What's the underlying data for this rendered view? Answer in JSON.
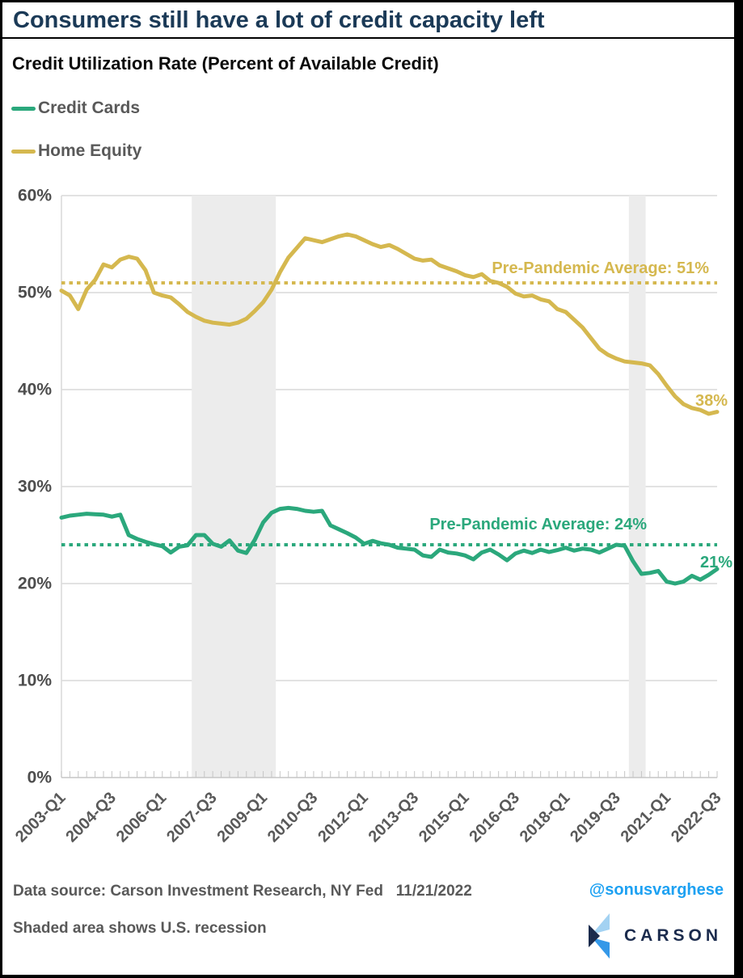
{
  "header": {
    "title": "Consumers still have a lot of credit capacity left",
    "subtitle": "Credit Utilization Rate (Percent of Available Credit)"
  },
  "legend": [
    {
      "label": "Credit Cards",
      "color": "#2ba87c"
    },
    {
      "label": "Home Equity",
      "color": "#d5b84f"
    }
  ],
  "chart_data": {
    "type": "line",
    "x_frequency": "quarterly",
    "x_start": "2003-Q1",
    "x_end": "2022-Q3",
    "x_tick_labels": [
      "2003-Q1",
      "2004-Q3",
      "2006-Q1",
      "2007-Q3",
      "2009-Q1",
      "2010-Q3",
      "2012-Q1",
      "2013-Q3",
      "2015-Q1",
      "2016-Q3",
      "2018-Q1",
      "2019-Q3",
      "2021-Q1",
      "2022-Q3"
    ],
    "ylim": [
      0,
      60
    ],
    "y_tick_labels": [
      "0%",
      "10%",
      "20%",
      "30%",
      "40%",
      "50%",
      "60%"
    ],
    "grid": "horizontal",
    "legend_position": "top-left",
    "recession_bands": [
      {
        "from": "2007-Q1",
        "to": "2009-Q2"
      },
      {
        "from": "2020-Q1",
        "to": "2020-Q2"
      }
    ],
    "series": [
      {
        "name": "Credit Cards",
        "color": "#2ba87c",
        "end_label": "21%",
        "average_line": {
          "value": 24,
          "label": "Pre-Pandemic Average: 24%"
        },
        "values": [
          26.8,
          27.0,
          27.1,
          27.2,
          27.15,
          27.1,
          26.9,
          27.1,
          25.0,
          24.6,
          24.3,
          24.05,
          23.85,
          23.2,
          23.8,
          23.95,
          25.0,
          25.0,
          24.1,
          23.8,
          24.45,
          23.4,
          23.15,
          24.5,
          26.3,
          27.3,
          27.7,
          27.8,
          27.7,
          27.5,
          27.4,
          27.5,
          26.0,
          25.6,
          25.2,
          24.75,
          24.1,
          24.4,
          24.15,
          24.0,
          23.7,
          23.6,
          23.5,
          22.9,
          22.75,
          23.5,
          23.2,
          23.1,
          22.9,
          22.5,
          23.2,
          23.5,
          23.0,
          22.4,
          23.1,
          23.4,
          23.15,
          23.5,
          23.25,
          23.45,
          23.7,
          23.4,
          23.6,
          23.5,
          23.2,
          23.6,
          24.0,
          23.9,
          22.3,
          21.0,
          21.1,
          21.3,
          20.2,
          20.0,
          20.2,
          20.8,
          20.4,
          20.9,
          21.5
        ]
      },
      {
        "name": "Home Equity",
        "color": "#d5b84f",
        "end_label": "38%",
        "average_line": {
          "value": 51,
          "label": "Pre-Pandemic Average: 51%"
        },
        "values": [
          50.2,
          49.7,
          48.3,
          50.3,
          51.3,
          52.9,
          52.6,
          53.4,
          53.7,
          53.5,
          52.3,
          50.0,
          49.7,
          49.5,
          48.8,
          48.0,
          47.5,
          47.1,
          46.9,
          46.8,
          46.7,
          46.9,
          47.3,
          48.1,
          49.0,
          50.3,
          52.1,
          53.6,
          54.6,
          55.6,
          55.4,
          55.2,
          55.5,
          55.8,
          56.0,
          55.8,
          55.4,
          55.0,
          54.7,
          54.9,
          54.5,
          54.0,
          53.5,
          53.3,
          53.4,
          52.8,
          52.5,
          52.2,
          51.8,
          51.6,
          51.9,
          51.2,
          51.0,
          50.6,
          49.9,
          49.6,
          49.7,
          49.3,
          49.1,
          48.3,
          48.0,
          47.2,
          46.4,
          45.3,
          44.2,
          43.6,
          43.2,
          42.9,
          42.8,
          42.7,
          42.5,
          41.6,
          40.4,
          39.3,
          38.5,
          38.1,
          37.9,
          37.5,
          37.7
        ]
      }
    ]
  },
  "footer": {
    "source": "Data source: Carson Investment Research, NY Fed   11/21/2022",
    "handle": "@sonusvarghese",
    "note": "Shaded area shows U.S. recession",
    "brand": "CARSON"
  },
  "colors": {
    "title_navy": "#1b3a57",
    "text_gray": "#595959",
    "axis_label_gray": "#4d4d4d",
    "gridline": "#d9d9d9",
    "axis_line": "#c6c6c6",
    "recession_band": "#ececec",
    "handle_blue": "#1da1f2",
    "logo_navy": "#1b2b4d",
    "logo_light_blue": "#a3d2f2",
    "logo_bright_blue": "#3498e8"
  }
}
